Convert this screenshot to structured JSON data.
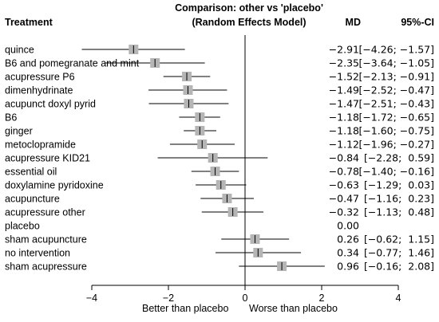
{
  "chart_data": {
    "type": "forest",
    "title_line1": "Comparison: other vs 'placebo'",
    "title_line2": "(Random Effects Model)",
    "col_treatment": "Treatment",
    "col_md": "MD",
    "col_ci": "95%-CI",
    "xlim": [
      -4,
      4
    ],
    "xticks": [
      -4,
      -2,
      0,
      2,
      4
    ],
    "xtick_labels": [
      "−4",
      "−2",
      "0",
      "2",
      "4"
    ],
    "xlabel_left": "Better than placebo",
    "xlabel_right": "Worse than placebo",
    "rows": [
      {
        "name": "quince",
        "md": -2.91,
        "lo": -4.26,
        "hi": -1.57,
        "md_text": "−2.91",
        "ci_text": "[−4.26; −1.57]"
      },
      {
        "name": "B6 and pomegranate and mint",
        "md": -2.35,
        "lo": -3.64,
        "hi": -1.05,
        "md_text": "−2.35",
        "ci_text": "[−3.64; −1.05]"
      },
      {
        "name": "acupressure P6",
        "md": -1.52,
        "lo": -2.13,
        "hi": -0.91,
        "md_text": "−1.52",
        "ci_text": "[−2.13; −0.91]"
      },
      {
        "name": "dimenhydrinate",
        "md": -1.49,
        "lo": -2.52,
        "hi": -0.47,
        "md_text": "−1.49",
        "ci_text": "[−2.52; −0.47]"
      },
      {
        "name": "acupunct doxyl pyrid",
        "md": -1.47,
        "lo": -2.51,
        "hi": -0.43,
        "md_text": "−1.47",
        "ci_text": "[−2.51; −0.43]"
      },
      {
        "name": "B6",
        "md": -1.18,
        "lo": -1.72,
        "hi": -0.65,
        "md_text": "−1.18",
        "ci_text": "[−1.72; −0.65]"
      },
      {
        "name": "ginger",
        "md": -1.18,
        "lo": -1.6,
        "hi": -0.75,
        "md_text": "−1.18",
        "ci_text": "[−1.60; −0.75]"
      },
      {
        "name": "metoclopramide",
        "md": -1.12,
        "lo": -1.96,
        "hi": -0.27,
        "md_text": "−1.12",
        "ci_text": "[−1.96; −0.27]"
      },
      {
        "name": "acupressure KID21",
        "md": -0.84,
        "lo": -2.28,
        "hi": 0.59,
        "md_text": "−0.84",
        "ci_text": "[−2.28;  0.59]"
      },
      {
        "name": "essential oil",
        "md": -0.78,
        "lo": -1.4,
        "hi": -0.16,
        "md_text": "−0.78",
        "ci_text": "[−1.40; −0.16]"
      },
      {
        "name": "doxylamine pyridoxine",
        "md": -0.63,
        "lo": -1.29,
        "hi": 0.03,
        "md_text": "−0.63",
        "ci_text": "[−1.29;  0.03]"
      },
      {
        "name": "acupuncture",
        "md": -0.47,
        "lo": -1.16,
        "hi": 0.23,
        "md_text": "−0.47",
        "ci_text": "[−1.16;  0.23]"
      },
      {
        "name": "acupressure other",
        "md": -0.32,
        "lo": -1.13,
        "hi": 0.48,
        "md_text": "−0.32",
        "ci_text": "[−1.13;  0.48]"
      },
      {
        "name": "placebo",
        "md": null,
        "lo": null,
        "hi": null,
        "md_text": "0.00",
        "ci_text": ""
      },
      {
        "name": "sham acupuncture",
        "md": 0.26,
        "lo": -0.62,
        "hi": 1.15,
        "md_text": "0.26",
        "ci_text": "[−0.62;  1.15]"
      },
      {
        "name": "no intervention",
        "md": 0.34,
        "lo": -0.77,
        "hi": 1.46,
        "md_text": "0.34",
        "ci_text": "[−0.77;  1.46]"
      },
      {
        "name": "sham acupressure",
        "md": 0.96,
        "lo": -0.16,
        "hi": 2.08,
        "md_text": "0.96",
        "ci_text": "[−0.16;  2.08]"
      }
    ],
    "square_color": "#b5b5b5"
  }
}
